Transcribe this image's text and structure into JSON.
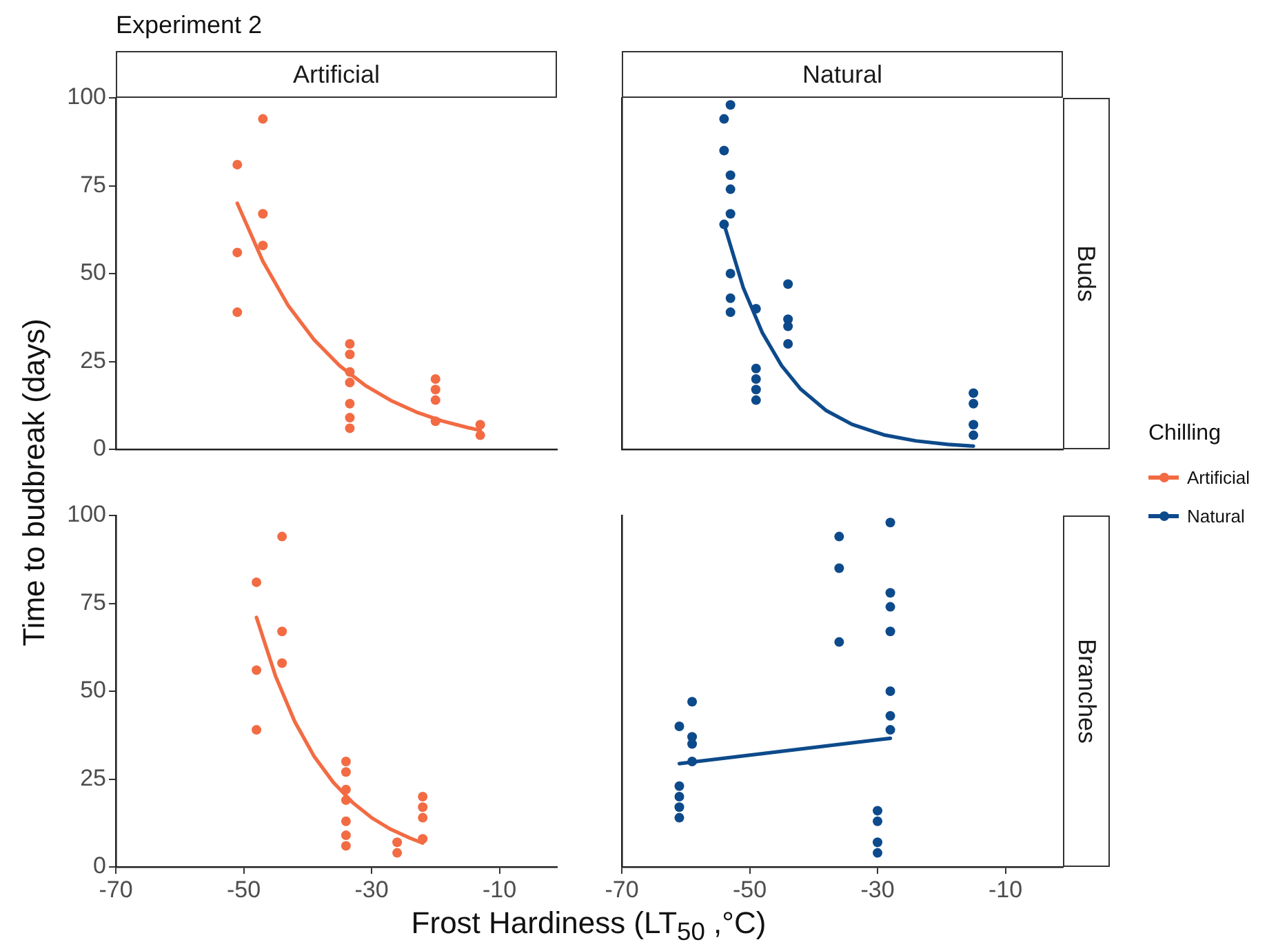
{
  "chart_data": [
    {
      "type": "scatter",
      "title": "Experiment 2",
      "subtitle": "Artificial",
      "ylabel": "Time to budbreak (days)",
      "xlim": [
        -70,
        -1
      ],
      "xticks": [
        -70,
        -50,
        -30,
        -10
      ],
      "ylim": [
        0,
        100
      ],
      "yticks": [
        0,
        25,
        50,
        75,
        100
      ],
      "grid": false,
      "tick_labels": "y",
      "series": [
        {
          "name": "Artificial",
          "marker": "circle",
          "color": "#f26b43",
          "x": [
            -51,
            -51,
            -51,
            -47,
            -47,
            -47,
            -33.4,
            -33.4,
            -33.4,
            -33.4,
            -33.4,
            -33.4,
            -33.4,
            -20,
            -20,
            -20,
            -20,
            -13,
            -13
          ],
          "values": [
            81,
            56,
            39,
            94,
            67,
            58,
            30,
            27,
            22,
            19,
            13,
            9,
            6,
            20,
            17,
            14,
            8,
            7,
            4
          ]
        },
        {
          "type": "line",
          "marker": "none",
          "color": "#f26b43",
          "line_style": "solid",
          "x": [
            -51,
            -47,
            -43,
            -39,
            -35,
            -31,
            -27,
            -23,
            -19,
            -15,
            -13
          ],
          "values": [
            70,
            53.5,
            40.8,
            31.2,
            23.8,
            18.2,
            13.9,
            10.6,
            8.1,
            6.2,
            5.4
          ]
        }
      ]
    },
    {
      "type": "scatter",
      "subtitle": "Natural",
      "annotations": [
        "Buds"
      ],
      "legend": "right",
      "legend_title": "Chilling",
      "xlim": [
        -70,
        -1
      ],
      "xticks": [
        -70,
        -50,
        -30,
        -10
      ],
      "ylim": [
        0,
        100
      ],
      "yticks": [
        0,
        25,
        50,
        75,
        100
      ],
      "grid": false,
      "tick_labels": false,
      "series": [
        {
          "name": "Natural",
          "marker": "circle",
          "color": "#0d4a8b",
          "x": [
            -54,
            -54,
            -54,
            -53,
            -53,
            -53,
            -53,
            -53,
            -53,
            -53,
            -49,
            -49,
            -49,
            -49,
            -49,
            -44,
            -44,
            -44,
            -44,
            -15,
            -15,
            -15,
            -15
          ],
          "values": [
            94,
            85,
            64,
            98,
            78,
            74,
            67,
            50,
            43,
            39,
            40,
            23,
            20,
            17,
            14,
            47,
            37,
            35,
            30,
            16,
            13,
            7,
            4
          ]
        },
        {
          "type": "line",
          "marker": "none",
          "color": "#0d4a8b",
          "line_style": "solid",
          "x": [
            -54,
            -51,
            -48,
            -45,
            -42,
            -38,
            -34,
            -29,
            -24,
            -19,
            -15
          ],
          "values": [
            64,
            46,
            33.1,
            23.8,
            17.1,
            11,
            7.1,
            4.1,
            2.4,
            1.4,
            0.9
          ]
        }
      ]
    },
    {
      "type": "scatter",
      "xlabel": "Frost Hardiness (LT$_{50}$ ,°C)",
      "xlim": [
        -70,
        -1
      ],
      "xticks": [
        -70,
        -50,
        -30,
        -10
      ],
      "ylim": [
        0,
        100
      ],
      "yticks": [
        0,
        25,
        50,
        75,
        100
      ],
      "grid": false,
      "series": [
        {
          "marker": "circle",
          "color": "#f26b43",
          "x": [
            -48,
            -48,
            -48,
            -44,
            -44,
            -44,
            -34,
            -34,
            -34,
            -34,
            -34,
            -34,
            -34,
            -26,
            -26,
            -22,
            -22,
            -22,
            -22
          ],
          "values": [
            81,
            56,
            39,
            94,
            67,
            58,
            30,
            27,
            22,
            19,
            13,
            9,
            6,
            7,
            4,
            20,
            17,
            14,
            8
          ]
        },
        {
          "type": "line",
          "marker": "none",
          "color": "#f26b43",
          "line_style": "solid",
          "x": [
            -48,
            -45,
            -42,
            -39,
            -36,
            -33,
            -30,
            -27,
            -24,
            -22
          ],
          "values": [
            71,
            54.2,
            41.3,
            31.5,
            24.1,
            18.4,
            14,
            10.7,
            8.2,
            6.8
          ]
        }
      ]
    },
    {
      "type": "scatter",
      "annotations": [
        "Branches"
      ],
      "xlim": [
        -70,
        -1
      ],
      "xticks": [
        -70,
        -50,
        -30,
        -10
      ],
      "ylim": [
        0,
        100
      ],
      "yticks": [
        0,
        25,
        50,
        75,
        100
      ],
      "grid": false,
      "tick_labels": "x",
      "series": [
        {
          "marker": "circle",
          "color": "#0d4a8b",
          "x": [
            -61,
            -61,
            -61,
            -61,
            -61,
            -59,
            -59,
            -59,
            -59,
            -36,
            -36,
            -36,
            -30,
            -30,
            -30,
            -30,
            -28,
            -28,
            -28,
            -28,
            -28,
            -28,
            -28
          ],
          "values": [
            40,
            23,
            20,
            17,
            14,
            47,
            37,
            35,
            30,
            94,
            85,
            64,
            16,
            13,
            7,
            4,
            98,
            78,
            74,
            67,
            50,
            43,
            39
          ]
        },
        {
          "type": "line",
          "marker": "none",
          "color": "#0d4a8b",
          "line_style": "solid",
          "x": [
            -61,
            -28
          ],
          "values": [
            29.4,
            36.6
          ]
        }
      ]
    }
  ]
}
